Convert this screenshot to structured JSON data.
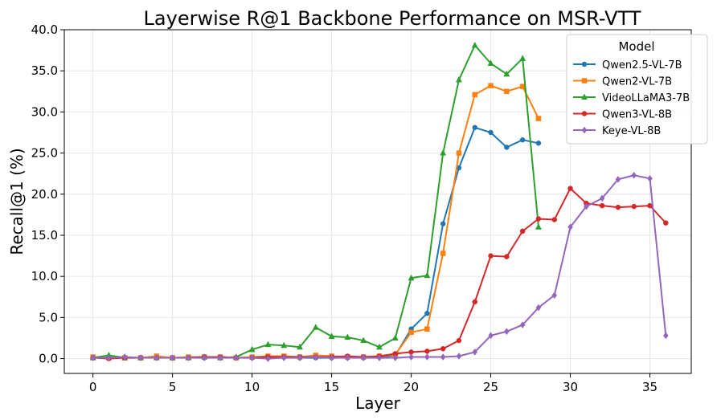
{
  "chart_data": {
    "type": "line",
    "title": "Layerwise R@1 Backbone Performance on MSR-VTT",
    "xlabel": "Layer",
    "ylabel": "Recall@1 (%)",
    "xlim": [
      -1.8,
      37.6
    ],
    "ylim": [
      -1.8,
      40.0
    ],
    "xticks": [
      0,
      5,
      10,
      15,
      20,
      25,
      30,
      35
    ],
    "yticks": [
      0.0,
      5.0,
      10.0,
      15.0,
      20.0,
      25.0,
      30.0,
      35.0,
      40.0
    ],
    "ytick_labels": [
      "0.0",
      "5.0",
      "10.0",
      "15.0",
      "20.0",
      "25.0",
      "30.0",
      "35.0",
      "40.0"
    ],
    "grid": true,
    "legend": {
      "title": "Model",
      "position": "top-right"
    },
    "series": [
      {
        "name": "Qwen2.5-VL-7B",
        "color": "#1f77b4",
        "marker": "circle",
        "x": [
          0,
          1,
          2,
          3,
          4,
          5,
          6,
          7,
          8,
          9,
          10,
          11,
          12,
          13,
          14,
          15,
          16,
          17,
          18,
          19,
          20,
          21,
          22,
          23,
          24,
          25,
          26,
          27,
          28
        ],
        "values": [
          0.1,
          0.1,
          0.1,
          0.1,
          0.1,
          0.1,
          0.1,
          0.1,
          0.1,
          0.1,
          0.1,
          0.2,
          0.2,
          0.1,
          0.1,
          0.1,
          0.1,
          0.1,
          0.2,
          0.4,
          3.6,
          5.5,
          16.4,
          23.2,
          28.1,
          27.5,
          25.7,
          26.6,
          26.2
        ]
      },
      {
        "name": "Qwen2-VL-7B",
        "color": "#ff7f0e",
        "marker": "square",
        "x": [
          0,
          1,
          2,
          3,
          4,
          5,
          6,
          7,
          8,
          9,
          10,
          11,
          12,
          13,
          14,
          15,
          16,
          17,
          18,
          19,
          20,
          21,
          22,
          23,
          24,
          25,
          26,
          27,
          28
        ],
        "values": [
          0.2,
          0.1,
          0.1,
          0.1,
          0.3,
          0.1,
          0.2,
          0.2,
          0.2,
          0.1,
          0.2,
          0.3,
          0.3,
          0.2,
          0.4,
          0.3,
          0.2,
          0.2,
          0.3,
          0.5,
          3.2,
          3.6,
          12.8,
          25.0,
          32.1,
          33.2,
          32.5,
          33.1,
          29.2
        ]
      },
      {
        "name": "VideoLLaMA3-7B",
        "color": "#2ca02c",
        "marker": "triangle",
        "x": [
          0,
          1,
          2,
          3,
          4,
          5,
          6,
          7,
          8,
          9,
          10,
          11,
          12,
          13,
          14,
          15,
          16,
          17,
          18,
          19,
          20,
          21,
          22,
          23,
          24,
          25,
          26,
          27,
          28
        ],
        "values": [
          0.1,
          0.4,
          0.1,
          0.1,
          0.1,
          0.1,
          0.1,
          0.2,
          0.1,
          0.2,
          1.1,
          1.7,
          1.6,
          1.4,
          3.8,
          2.7,
          2.6,
          2.2,
          1.4,
          2.5,
          9.8,
          10.1,
          25.0,
          33.9,
          38.1,
          35.9,
          34.6,
          36.5,
          16.0
        ]
      },
      {
        "name": "Qwen3-VL-8B",
        "color": "#d62728",
        "marker": "circle",
        "x": [
          0,
          1,
          2,
          3,
          4,
          5,
          6,
          7,
          8,
          9,
          10,
          11,
          12,
          13,
          14,
          15,
          16,
          17,
          18,
          19,
          20,
          21,
          22,
          23,
          24,
          25,
          26,
          27,
          28,
          29,
          30,
          31,
          32,
          33,
          34,
          35,
          36
        ],
        "values": [
          0.1,
          0.0,
          0.1,
          0.1,
          0.1,
          0.1,
          0.1,
          0.2,
          0.2,
          0.1,
          0.1,
          0.2,
          0.2,
          0.2,
          0.2,
          0.2,
          0.3,
          0.2,
          0.3,
          0.6,
          0.8,
          0.9,
          1.2,
          2.2,
          6.9,
          12.5,
          12.4,
          15.5,
          17.0,
          16.9,
          20.7,
          18.9,
          18.6,
          18.4,
          18.5,
          18.6,
          16.5
        ]
      },
      {
        "name": "Keye-VL-8B",
        "color": "#9467bd",
        "marker": "diamond",
        "x": [
          0,
          1,
          2,
          3,
          4,
          5,
          6,
          7,
          8,
          9,
          10,
          11,
          12,
          13,
          14,
          15,
          16,
          17,
          18,
          19,
          20,
          21,
          22,
          23,
          24,
          25,
          26,
          27,
          28,
          29,
          30,
          31,
          32,
          33,
          34,
          35,
          36
        ],
        "values": [
          0.1,
          0.1,
          0.2,
          0.1,
          0.1,
          0.1,
          0.1,
          0.1,
          0.1,
          0.1,
          0.1,
          0.0,
          0.1,
          0.1,
          0.2,
          0.1,
          0.1,
          0.1,
          0.1,
          0.1,
          0.2,
          0.2,
          0.2,
          0.3,
          0.8,
          2.8,
          3.3,
          4.1,
          6.2,
          7.7,
          16.0,
          18.5,
          19.5,
          21.8,
          22.3,
          21.9,
          2.8
        ]
      }
    ]
  }
}
